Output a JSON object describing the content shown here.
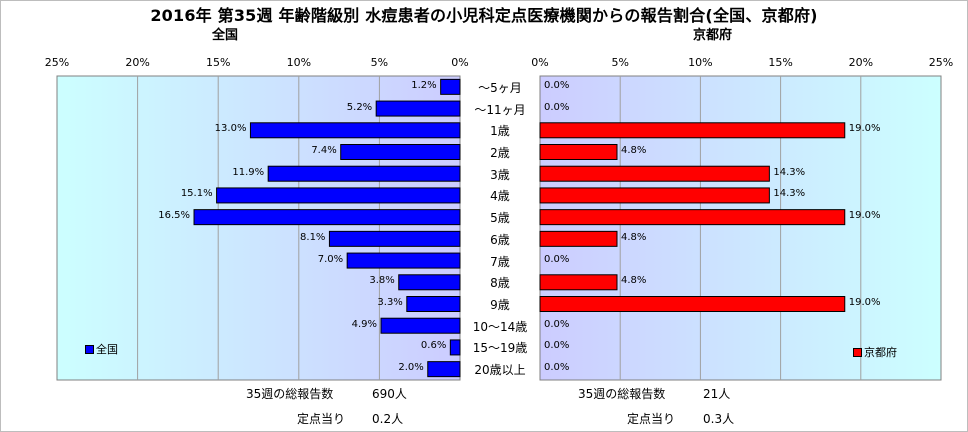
{
  "title": "2016年 第35週 年齢階級別 水痘患者の小児科定点医療機関からの報告割合(全国、京都府)",
  "chart_data": [
    {
      "type": "bar",
      "orientation": "horizontal",
      "direction": "right-to-left",
      "title": "全国",
      "xlim": [
        0,
        25
      ],
      "ticks": [
        "0%",
        "5%",
        "10%",
        "15%",
        "20%",
        "25%"
      ],
      "tick_values": [
        0,
        5,
        10,
        15,
        20,
        25
      ],
      "categories": [
        "～5ヶ月",
        "～11ヶ月",
        "1歳",
        "2歳",
        "3歳",
        "4歳",
        "5歳",
        "6歳",
        "7歳",
        "8歳",
        "9歳",
        "10～14歳",
        "15～19歳",
        "20歳以上"
      ],
      "series": [
        {
          "name": "全国",
          "color": "#0000ff",
          "values": [
            1.2,
            5.2,
            13.0,
            7.4,
            11.9,
            15.1,
            16.5,
            8.1,
            7.0,
            3.8,
            3.3,
            4.9,
            0.6,
            2.0
          ],
          "labels": [
            "1.2%",
            "5.2%",
            "13.0%",
            "7.4%",
            "11.9%",
            "15.1%",
            "16.5%",
            "8.1%",
            "7.0%",
            "3.8%",
            "3.3%",
            "4.9%",
            "0.6%",
            "2.0%"
          ]
        }
      ],
      "legend_position": "bottom-left",
      "plot_background": "#ccffff-to-#ccccff gradient",
      "grid": true
    },
    {
      "type": "bar",
      "orientation": "horizontal",
      "direction": "left-to-right",
      "title": "京都府",
      "xlim": [
        0,
        25
      ],
      "ticks": [
        "0%",
        "5%",
        "10%",
        "15%",
        "20%",
        "25%"
      ],
      "tick_values": [
        0,
        5,
        10,
        15,
        20,
        25
      ],
      "categories": [
        "～5ヶ月",
        "～11ヶ月",
        "1歳",
        "2歳",
        "3歳",
        "4歳",
        "5歳",
        "6歳",
        "7歳",
        "8歳",
        "9歳",
        "10～14歳",
        "15～19歳",
        "20歳以上"
      ],
      "series": [
        {
          "name": "京都府",
          "color": "#ff0000",
          "values": [
            0.0,
            0.0,
            19.0,
            4.8,
            14.3,
            14.3,
            19.0,
            4.8,
            0.0,
            4.8,
            19.0,
            0.0,
            0.0,
            0.0
          ],
          "labels": [
            "0.0%",
            "0.0%",
            "19.0%",
            "4.8%",
            "14.3%",
            "14.3%",
            "19.0%",
            "4.8%",
            "0.0%",
            "4.8%",
            "19.0%",
            "0.0%",
            "0.0%",
            "0.0%"
          ]
        }
      ],
      "legend_position": "bottom-right",
      "plot_background": "#ccccff-to-#ccffff gradient",
      "grid": true
    }
  ],
  "footer": {
    "national": {
      "total_label": "35週の総報告数",
      "total_value": "690人",
      "per_label": "定点当り",
      "per_value": "0.2人"
    },
    "kyoto": {
      "total_label": "35週の総報告数",
      "total_value": "21人",
      "per_label": "定点当り",
      "per_value": "0.3人"
    }
  }
}
